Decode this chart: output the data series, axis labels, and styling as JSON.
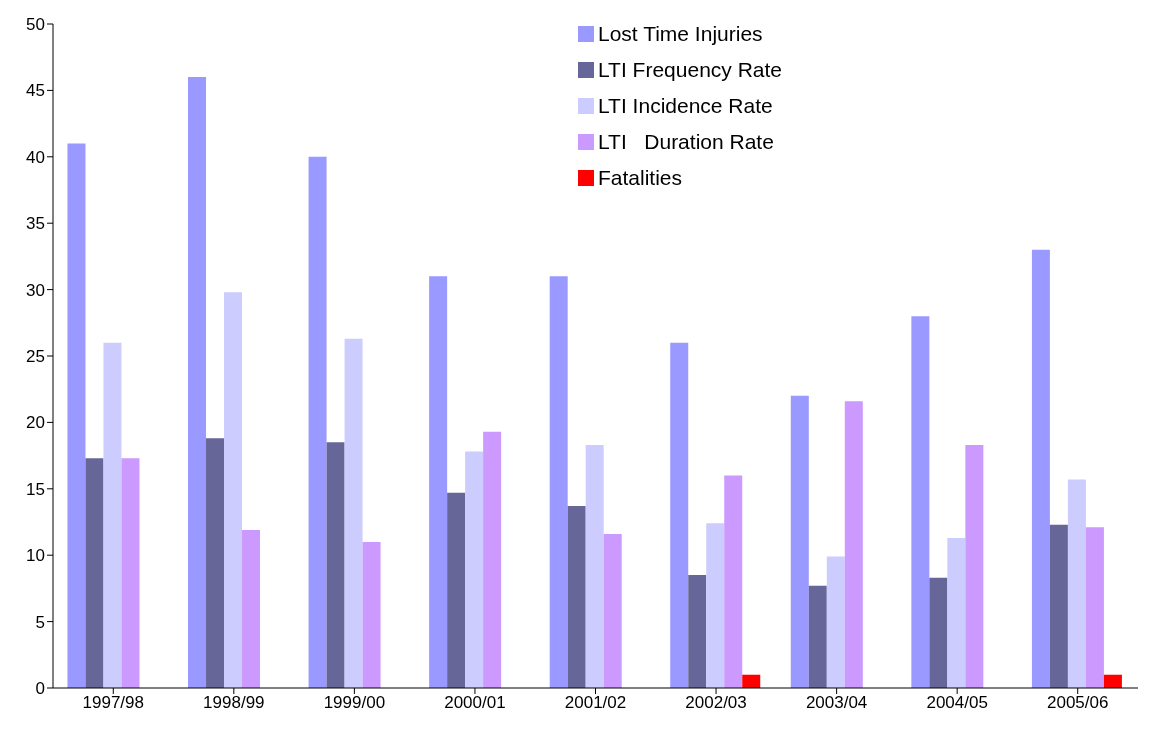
{
  "chart_data": {
    "type": "bar",
    "categories": [
      "1997/98",
      "1998/99",
      "1999/00",
      "2000/01",
      "2001/02",
      "2002/03",
      "2003/04",
      "2004/05",
      "2005/06"
    ],
    "series": [
      {
        "name": "Lost Time Injuries",
        "color": "#9999ff",
        "values": [
          41,
          46,
          40,
          31,
          31,
          26,
          22,
          28,
          33
        ]
      },
      {
        "name": "LTI Frequency Rate",
        "color": "#666699",
        "values": [
          17.3,
          18.8,
          18.5,
          14.7,
          13.7,
          8.5,
          7.7,
          8.3,
          12.3
        ]
      },
      {
        "name": "LTI Incidence Rate",
        "color": "#ccccff",
        "values": [
          26.0,
          29.8,
          26.3,
          17.8,
          18.3,
          12.4,
          9.9,
          11.3,
          15.7
        ]
      },
      {
        "name": "LTI   Duration Rate",
        "color": "#cc99ff",
        "values": [
          17.3,
          11.9,
          11.0,
          19.3,
          11.6,
          16.0,
          21.6,
          18.3,
          12.1
        ]
      },
      {
        "name": "Fatalities",
        "color": "#ff0000",
        "values": [
          null,
          null,
          null,
          null,
          null,
          1,
          null,
          null,
          1
        ]
      }
    ],
    "ylim": [
      0,
      50
    ],
    "yticks": [
      0,
      5,
      10,
      15,
      20,
      25,
      30,
      35,
      40,
      45,
      50
    ],
    "grid": false,
    "legend": "top"
  }
}
